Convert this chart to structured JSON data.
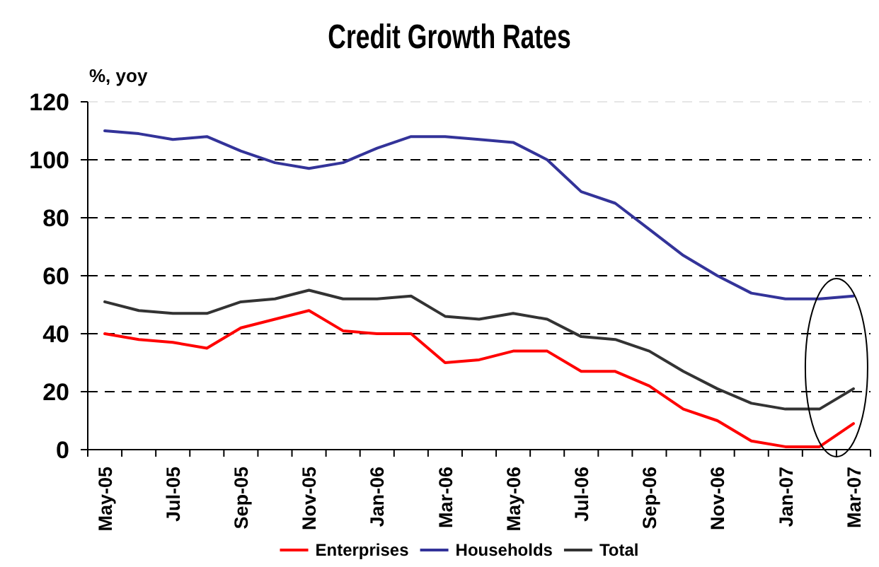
{
  "chart_data": {
    "type": "line",
    "title": "Credit Growth Rates",
    "ylabel": "%, yoy",
    "categories": [
      "May-05",
      null,
      "Jul-05",
      null,
      "Sep-05",
      null,
      "Nov-05",
      null,
      "Jan-06",
      null,
      "Mar-06",
      null,
      "May-06",
      null,
      "Jul-06",
      null,
      "Sep-06",
      null,
      "Nov-06",
      null,
      "Jan-07",
      null,
      "Mar-07"
    ],
    "series": [
      {
        "name": "Enterprises",
        "color": "#ff0000",
        "values": [
          40,
          38,
          37,
          35,
          42,
          45,
          48,
          41,
          40,
          40,
          30,
          31,
          34,
          34,
          27,
          27,
          22,
          14,
          10,
          3,
          1,
          1,
          9
        ]
      },
      {
        "name": "Households",
        "color": "#333399",
        "values": [
          110,
          109,
          107,
          108,
          103,
          99,
          97,
          99,
          104,
          108,
          108,
          107,
          106,
          100,
          89,
          85,
          76,
          67,
          60,
          54,
          52,
          52,
          53
        ]
      },
      {
        "name": "Total",
        "color": "#333333",
        "values": [
          51,
          48,
          47,
          47,
          51,
          52,
          55,
          52,
          52,
          53,
          46,
          45,
          47,
          45,
          39,
          38,
          34,
          27,
          21,
          16,
          14,
          14,
          21
        ]
      }
    ],
    "ylim": [
      0,
      120
    ],
    "yticks": [
      0,
      20,
      40,
      60,
      80,
      100,
      120
    ],
    "grid": "y",
    "legend": "bottom"
  }
}
